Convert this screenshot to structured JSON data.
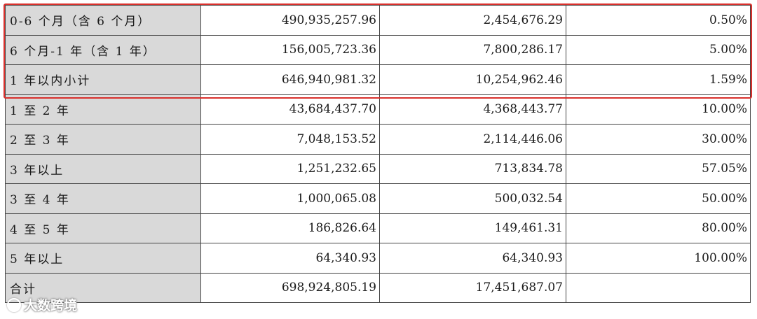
{
  "table": {
    "rows": [
      {
        "label": "0-6 个月（含 6 个月）",
        "balance": "490,935,257.96",
        "provision": "2,454,676.29",
        "ratio": "0.50%"
      },
      {
        "label": "6 个月-1 年（含 1 年）",
        "balance": "156,005,723.36",
        "provision": "7,800,286.17",
        "ratio": "5.00%"
      },
      {
        "label": "1 年以内小计",
        "balance": "646,940,981.32",
        "provision": "10,254,962.46",
        "ratio": "1.59%"
      },
      {
        "label": "1 至 2 年",
        "balance": "43,684,437.70",
        "provision": "4,368,443.77",
        "ratio": "10.00%"
      },
      {
        "label": "2 至 3 年",
        "balance": "7,048,153.52",
        "provision": "2,114,446.06",
        "ratio": "30.00%"
      },
      {
        "label": "3 年以上",
        "balance": "1,251,232.65",
        "provision": "713,834.78",
        "ratio": "57.05%"
      },
      {
        "label": "3 至 4 年",
        "balance": "1,000,065.08",
        "provision": "500,032.54",
        "ratio": "50.00%"
      },
      {
        "label": "4 至 5 年",
        "balance": "186,826.64",
        "provision": "149,461.31",
        "ratio": "80.00%"
      },
      {
        "label": "5 年以上",
        "balance": "64,340.93",
        "provision": "64,340.93",
        "ratio": "100.00%"
      },
      {
        "label": "合计",
        "balance": "698,924,805.19",
        "provision": "17,451,687.07",
        "ratio": ""
      }
    ]
  },
  "watermark": {
    "text": "大数跨境"
  },
  "highlight": {
    "color": "#d9302c"
  }
}
